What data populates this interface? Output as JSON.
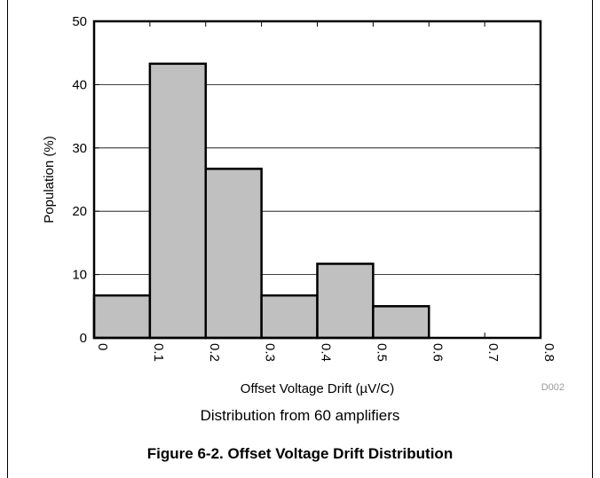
{
  "figure_caption": "Figure 6-2. Offset Voltage Drift Distribution",
  "chart_data": {
    "type": "bar",
    "subtitle": "Distribution from 60 amplifiers",
    "xlabel": "Offset Voltage Drift (µV/C)",
    "ylabel": "Population (%)",
    "figure_code": "D002",
    "bins": [
      {
        "from": 0.0,
        "to": 0.1,
        "value": 6.7
      },
      {
        "from": 0.1,
        "to": 0.2,
        "value": 43.3
      },
      {
        "from": 0.2,
        "to": 0.3,
        "value": 26.7
      },
      {
        "from": 0.3,
        "to": 0.4,
        "value": 6.7
      },
      {
        "from": 0.4,
        "to": 0.5,
        "value": 11.7
      },
      {
        "from": 0.5,
        "to": 0.6,
        "value": 5.0
      },
      {
        "from": 0.6,
        "to": 0.7,
        "value": 0
      },
      {
        "from": 0.7,
        "to": 0.8,
        "value": 0
      }
    ],
    "xlim": [
      0,
      0.8
    ],
    "ylim": [
      0,
      50
    ],
    "xticks": [
      "0",
      "0.1",
      "0.2",
      "0.3",
      "0.4",
      "0.5",
      "0.6",
      "0.7",
      "0.8"
    ],
    "yticks": [
      "0",
      "10",
      "20",
      "30",
      "40",
      "50"
    ],
    "grid": "horizontal",
    "bar_color": "#c0c0c0"
  }
}
